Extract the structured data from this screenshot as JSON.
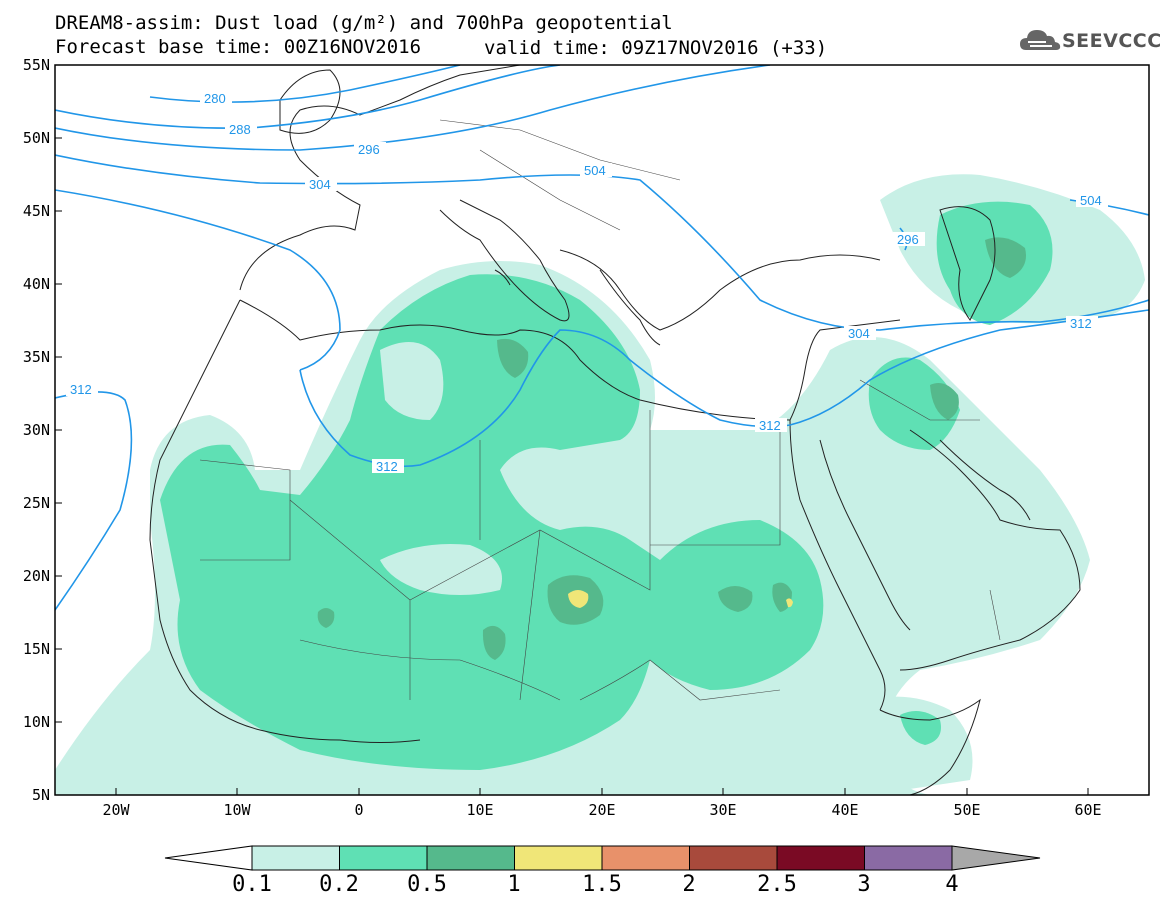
{
  "header": {
    "line1": "DREAM8-assim: Dust load (g/m²) and 700hPa geopotential",
    "line2": "Forecast base time: 00Z16NOV2016",
    "line2b": "valid time: 09Z17NOV2016 (+33)"
  },
  "logo": {
    "text": "SEEVCCC",
    "icon": "cloud-logo-icon"
  },
  "map": {
    "lat_labels": [
      "55N",
      "50N",
      "45N",
      "40N",
      "35N",
      "30N",
      "25N",
      "20N",
      "15N",
      "10N",
      "5N"
    ],
    "lon_labels": [
      "20W",
      "10W",
      "0",
      "10E",
      "20E",
      "30E",
      "40E",
      "50E",
      "60E"
    ],
    "contour_labels": [
      "280",
      "288",
      "296",
      "304",
      "504",
      "296",
      "504",
      "304",
      "312",
      "312",
      "312",
      "312"
    ]
  },
  "colorbar": {
    "labels": [
      "0.1",
      "0.2",
      "0.5",
      "1",
      "1.5",
      "2",
      "2.5",
      "3",
      "4"
    ],
    "colors": [
      "#c8f0e6",
      "#5fe0b4",
      "#55b98c",
      "#f0e678",
      "#e8916a",
      "#a84a3c",
      "#7a0a24",
      "#8a6aa4",
      "#a8a8a8"
    ]
  }
}
